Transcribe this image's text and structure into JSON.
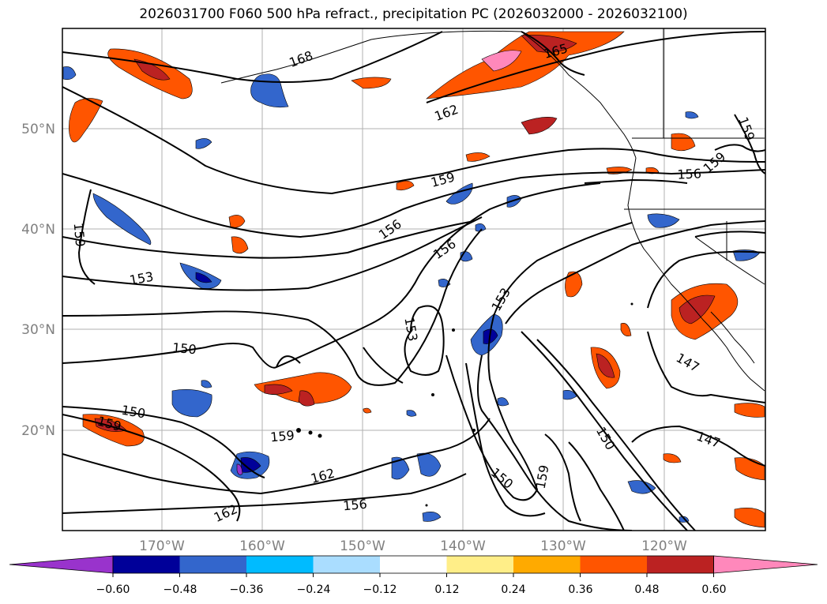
{
  "title": "2026031700 F060 500 hPa refract., precipitation PC (2026032000 - 2026032100)",
  "map": {
    "lat_labels": [
      "50°N",
      "40°N",
      "30°N",
      "20°N"
    ],
    "lon_labels": [
      "170°W",
      "160°W",
      "150°W",
      "140°W",
      "130°W",
      "120°W"
    ],
    "contour_labels": [
      "168",
      "165",
      "162",
      "159",
      "159",
      "159",
      "156",
      "156",
      "156",
      "159",
      "153",
      "153",
      "153",
      "150",
      "150",
      "159",
      "150",
      "159",
      "162",
      "162",
      "156",
      "150",
      "159",
      "147",
      "147"
    ]
  },
  "colorbar": {
    "colors": [
      "#9933cc",
      "#000099",
      "#3366cc",
      "#00bbff",
      "#aaddff",
      "#ffffff",
      "#ffee88",
      "#ffaa00",
      "#ff5500",
      "#bb2222",
      "#ff88bb"
    ],
    "ticks": [
      "−0.60",
      "−0.48",
      "−0.36",
      "−0.24",
      "−0.12",
      "0.12",
      "0.24",
      "0.36",
      "0.48",
      "0.60"
    ]
  }
}
